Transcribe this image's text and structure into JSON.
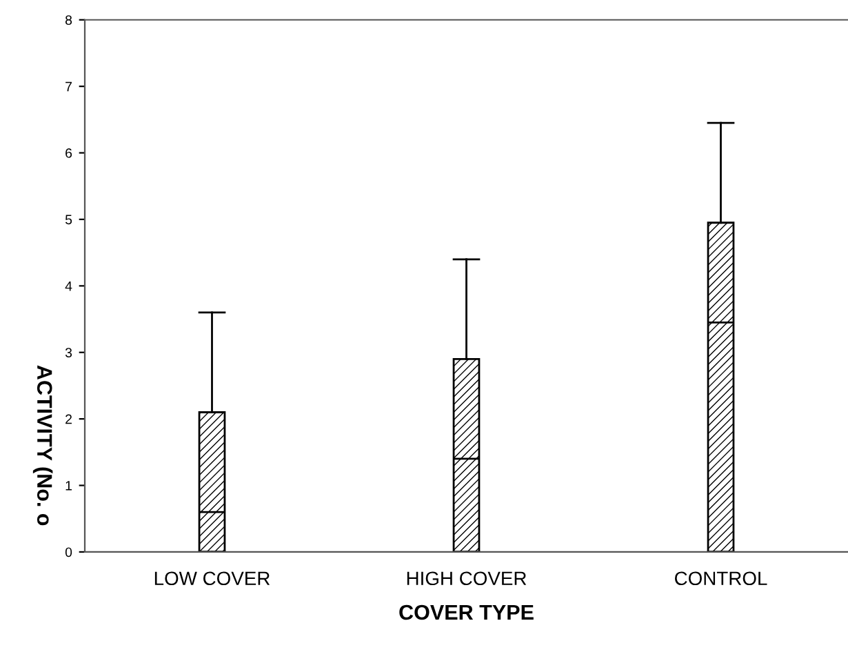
{
  "chart_data": {
    "type": "box",
    "xlabel": "COVER TYPE",
    "ylabel": "ACTIVITY (No. o",
    "categories": [
      "LOW COVER",
      "HIGH COVER",
      "CONTROL"
    ],
    "boxes": [
      {
        "low": 0,
        "q1": 0,
        "median": 0.6,
        "q3": 2.1,
        "high": 3.6
      },
      {
        "low": 0,
        "q1": 0,
        "median": 1.4,
        "q3": 2.9,
        "high": 4.4
      },
      {
        "low": 0,
        "q1": 0,
        "median": 3.45,
        "q3": 4.95,
        "high": 6.45
      }
    ],
    "ylim": [
      0,
      8
    ],
    "yticks": [
      0,
      1,
      2,
      3,
      4,
      5,
      6,
      7,
      8
    ],
    "grid": false,
    "legend": false
  }
}
